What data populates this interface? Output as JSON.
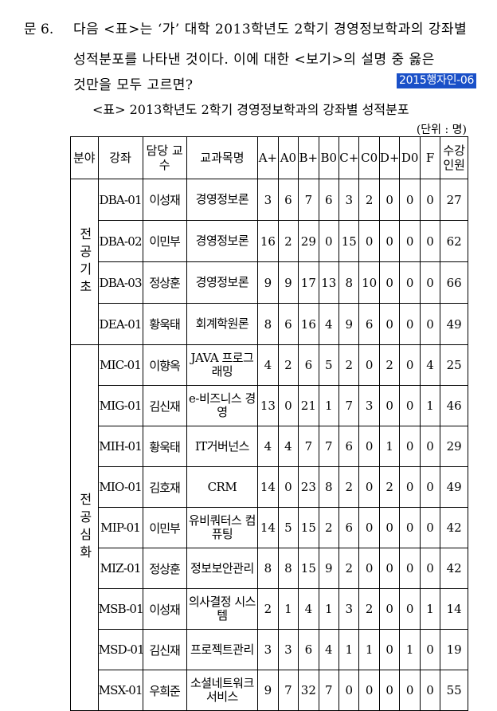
{
  "question": {
    "number": "문  6.",
    "line1": "다음 <표>는 ‘가’ 대학 2013학년도 2학기 경영정보학과의 강좌별",
    "line2": "성적분포를 나타낸 것이다. 이에 대한 <보기>의 설명 중 옳은",
    "line3": "것만을 모두 고르면?",
    "tag": "2015행자인-06"
  },
  "table": {
    "title": "<표> 2013학년도 2학기 경영정보학과의 강좌별 성적분포",
    "unit": "(단위 : 명)",
    "headers": {
      "field": "분야",
      "course": "강좌",
      "professor": "담당 교수",
      "course_name": "교과목명",
      "grades": [
        "A+",
        "A0",
        "B+",
        "B0",
        "C+",
        "C0",
        "D+",
        "D0",
        "F"
      ],
      "students": "수강 인원"
    },
    "groups": [
      {
        "field": "전공기초",
        "rows": [
          {
            "code": "DBA-01",
            "prof": "이성재",
            "name": "경영정보론",
            "grades": [
              "3",
              "6",
              "7",
              "6",
              "3",
              "2",
              "0",
              "0",
              "0"
            ],
            "total": "27"
          },
          {
            "code": "DBA-02",
            "prof": "이민부",
            "name": "경영정보론",
            "grades": [
              "16",
              "2",
              "29",
              "0",
              "15",
              "0",
              "0",
              "0",
              "0"
            ],
            "total": "62"
          },
          {
            "code": "DBA-03",
            "prof": "정상훈",
            "name": "경영정보론",
            "grades": [
              "9",
              "9",
              "17",
              "13",
              "8",
              "10",
              "0",
              "0",
              "0"
            ],
            "total": "66"
          },
          {
            "code": "DEA-01",
            "prof": "황욱태",
            "name": "회계학원론",
            "grades": [
              "8",
              "6",
              "16",
              "4",
              "9",
              "6",
              "0",
              "0",
              "0"
            ],
            "total": "49"
          }
        ]
      },
      {
        "field": "전공심화",
        "rows": [
          {
            "code": "MIC-01",
            "prof": "이향옥",
            "name": "JAVA 프로그래밍",
            "grades": [
              "4",
              "2",
              "6",
              "5",
              "2",
              "0",
              "2",
              "0",
              "4"
            ],
            "total": "25"
          },
          {
            "code": "MIG-01",
            "prof": "김신재",
            "name": "e-비즈니스 경영",
            "grades": [
              "13",
              "0",
              "21",
              "1",
              "7",
              "3",
              "0",
              "0",
              "1"
            ],
            "total": "46"
          },
          {
            "code": "MIH-01",
            "prof": "황욱태",
            "name": "IT거버넌스",
            "grades": [
              "4",
              "4",
              "7",
              "7",
              "6",
              "0",
              "1",
              "0",
              "0"
            ],
            "total": "29"
          },
          {
            "code": "MIO-01",
            "prof": "김호재",
            "name": "CRM",
            "grades": [
              "14",
              "0",
              "23",
              "8",
              "2",
              "0",
              "2",
              "0",
              "0"
            ],
            "total": "49"
          },
          {
            "code": "MIP-01",
            "prof": "이민부",
            "name": "유비쿼터스 컴퓨팅",
            "grades": [
              "14",
              "5",
              "15",
              "2",
              "6",
              "0",
              "0",
              "0",
              "0"
            ],
            "total": "42"
          },
          {
            "code": "MIZ-01",
            "prof": "정상훈",
            "name": "정보보안관리",
            "grades": [
              "8",
              "8",
              "15",
              "9",
              "2",
              "0",
              "0",
              "0",
              "0"
            ],
            "total": "42"
          },
          {
            "code": "MSB-01",
            "prof": "이성재",
            "name": "의사결정 시스템",
            "grades": [
              "2",
              "1",
              "4",
              "1",
              "3",
              "2",
              "0",
              "0",
              "1"
            ],
            "total": "14"
          },
          {
            "code": "MSD-01",
            "prof": "김신재",
            "name": "프로젝트관리",
            "grades": [
              "3",
              "3",
              "6",
              "4",
              "1",
              "1",
              "0",
              "1",
              "0"
            ],
            "total": "19"
          },
          {
            "code": "MSX-01",
            "prof": "우희준",
            "name": "소셜네트워크 서비스",
            "grades": [
              "9",
              "7",
              "32",
              "7",
              "0",
              "0",
              "0",
              "0",
              "0"
            ],
            "total": "55"
          }
        ]
      }
    ]
  }
}
